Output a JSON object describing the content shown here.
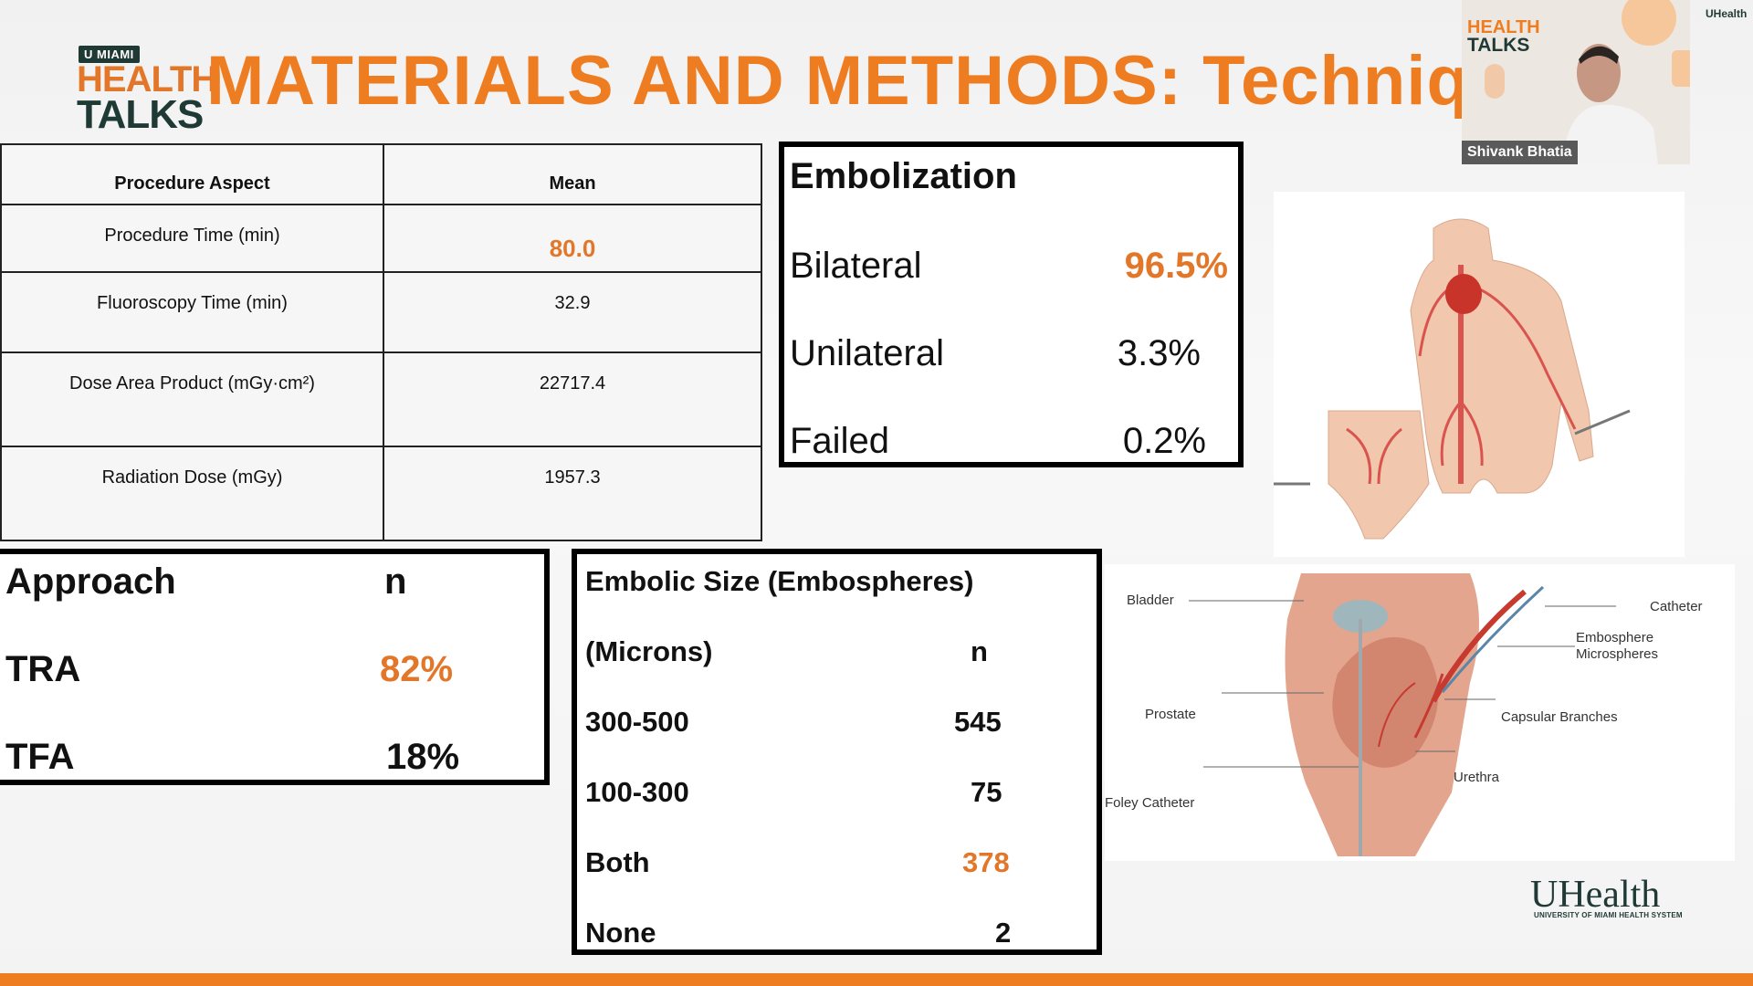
{
  "header": {
    "logo_miami": "U MIAMI",
    "logo_health": "HEALTH",
    "logo_talks": "TALKS",
    "title": "MATERIALS AND METHODS: Technique"
  },
  "procedure_table": {
    "headers": [
      "Procedure Aspect",
      "Mean"
    ],
    "rows": [
      {
        "aspect": "Procedure Time (min)",
        "mean": "80.0"
      },
      {
        "aspect": "Fluoroscopy Time (min)",
        "mean": "32.9"
      },
      {
        "aspect": "Dose Area Product (mGy·cm²)",
        "mean": "22717.4"
      },
      {
        "aspect": "Radiation Dose (mGy)",
        "mean": "1957.3"
      }
    ]
  },
  "embolization": {
    "title": "Embolization",
    "rows": [
      {
        "label": "Bilateral",
        "value": "96.5%"
      },
      {
        "label": "Unilateral",
        "value": "3.3%"
      },
      {
        "label": "Failed",
        "value": "0.2%"
      }
    ]
  },
  "approach": {
    "header_label": "Approach",
    "header_n": "n",
    "rows": [
      {
        "label": "TRA",
        "value": "82%"
      },
      {
        "label": "TFA",
        "value": "18%"
      }
    ]
  },
  "embolic_size": {
    "title": "Embolic Size (Embospheres)",
    "subtitle": "(Microns)",
    "n_label": "n",
    "rows": [
      {
        "label": "300-500",
        "value": "545"
      },
      {
        "label": "100-300",
        "value": "75"
      },
      {
        "label": "Both",
        "value": "378"
      },
      {
        "label": "None",
        "value": "2"
      }
    ]
  },
  "diagram_labels": {
    "bladder": "Bladder",
    "catheter": "Catheter",
    "embosphere": "Embosphere",
    "microspheres": "Microspheres",
    "prostate": "Prostate",
    "capsular": "Capsular Branches",
    "urethra": "Urethra",
    "foley": "Foley Catheter"
  },
  "webcam": {
    "speaker_name": "Shivank Bhatia",
    "overlay_health": "HEALTH",
    "overlay_talks": "TALKS"
  },
  "footer": {
    "uhealth_mark": "UHealth",
    "uhealth_sub": "UNIVERSITY OF MIAMI HEALTH SYSTEM",
    "uhealth_top": "UHealth"
  },
  "colors": {
    "accent_orange": "#ee7d22",
    "highlight_orange": "#e2772a",
    "brand_green": "#1f3a34"
  }
}
